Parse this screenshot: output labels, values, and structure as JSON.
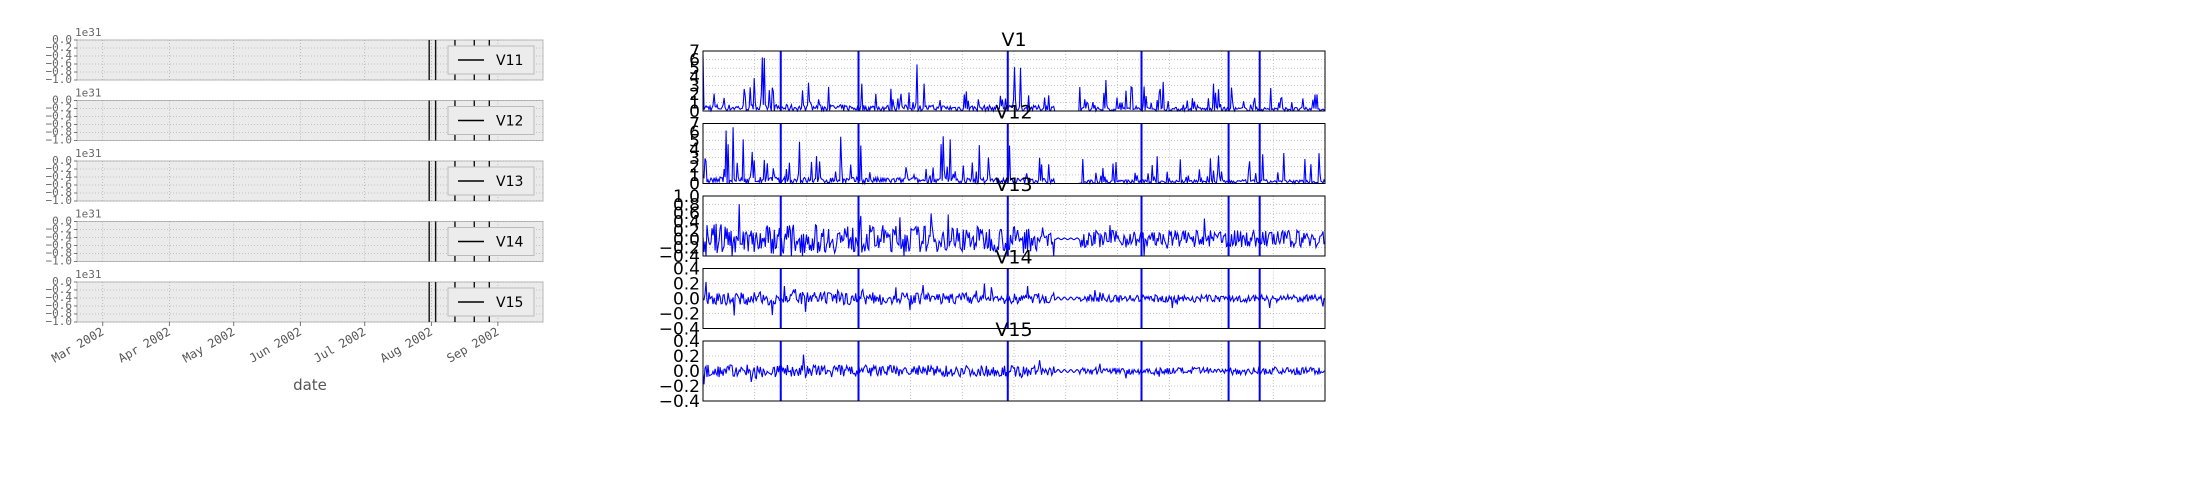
{
  "left_panel": {
    "xlabel": "date",
    "x_tick_labels": [
      "Mar 2002",
      "Apr 2002",
      "May 2002",
      "Jun 2002",
      "Jul 2002",
      "Aug 2002",
      "Sep 2002"
    ],
    "y_offset_label": "1e31",
    "y_tick_labels": [
      "0.0",
      "−0.2",
      "−0.4",
      "−0.6",
      "−0.8",
      "−1.0"
    ],
    "legend_position": "right",
    "background_color": "#ebebeb",
    "line_color": "#000000"
  },
  "chart_data": [
    {
      "type": "line",
      "panel": "left",
      "series": [
        {
          "name": "V11",
          "values": []
        }
      ],
      "ylim": [
        -1.0,
        0.0
      ],
      "y_scale_label": "1e31",
      "event_dates": [
        "2002-07-31",
        "2002-08-03",
        "2002-08-12",
        "2002-08-21",
        "2002-08-28"
      ],
      "grid": true,
      "legend": "right"
    },
    {
      "type": "line",
      "panel": "left",
      "series": [
        {
          "name": "V12",
          "values": []
        }
      ],
      "ylim": [
        -1.0,
        0.0
      ],
      "y_scale_label": "1e31",
      "event_dates": [
        "2002-07-31",
        "2002-08-03",
        "2002-08-12",
        "2002-08-21",
        "2002-08-28"
      ],
      "grid": true,
      "legend": "right"
    },
    {
      "type": "line",
      "panel": "left",
      "series": [
        {
          "name": "V13",
          "values": []
        }
      ],
      "ylim": [
        -1.0,
        0.0
      ],
      "y_scale_label": "1e31",
      "event_dates": [
        "2002-07-31",
        "2002-08-03",
        "2002-08-12",
        "2002-08-21",
        "2002-08-28"
      ],
      "grid": true,
      "legend": "right"
    },
    {
      "type": "line",
      "panel": "left",
      "series": [
        {
          "name": "V14",
          "values": []
        }
      ],
      "ylim": [
        -1.0,
        0.0
      ],
      "y_scale_label": "1e31",
      "event_dates": [
        "2002-07-31",
        "2002-08-03",
        "2002-08-12",
        "2002-08-21",
        "2002-08-28"
      ],
      "grid": true,
      "legend": "right"
    },
    {
      "type": "line",
      "panel": "left",
      "series": [
        {
          "name": "V15",
          "values": []
        }
      ],
      "ylim": [
        -1.0,
        0.0
      ],
      "y_scale_label": "1e31",
      "event_dates": [
        "2002-07-31",
        "2002-08-03",
        "2002-08-12",
        "2002-08-21",
        "2002-08-28"
      ],
      "grid": true,
      "legend": "right"
    },
    {
      "type": "line",
      "panel": "right",
      "title": "V1",
      "ylim": [
        0,
        7
      ],
      "yticks": [
        "0",
        "1",
        "2",
        "3",
        "4",
        "5",
        "6",
        "7"
      ],
      "color": "#0000ff",
      "grid": true
    },
    {
      "type": "line",
      "panel": "right",
      "title": "V12",
      "ylim": [
        0,
        7
      ],
      "yticks": [
        "0",
        "1",
        "2",
        "3",
        "4",
        "5",
        "6",
        "7"
      ],
      "color": "#0000ff",
      "grid": true
    },
    {
      "type": "line",
      "panel": "right",
      "title": "V13",
      "ylim": [
        -0.4,
        1.0
      ],
      "yticks": [
        "−0.4",
        "−0.2",
        "0.0",
        "0.2",
        "0.4",
        "0.6",
        "0.8",
        "1.0"
      ],
      "color": "#0000ff",
      "grid": true
    },
    {
      "type": "line",
      "panel": "right",
      "title": "V14",
      "ylim": [
        -0.4,
        0.4
      ],
      "yticks": [
        "−0.4",
        "−0.2",
        "0.0",
        "0.2",
        "0.4"
      ],
      "color": "#0000ff",
      "grid": true
    },
    {
      "type": "line",
      "panel": "right",
      "title": "V15",
      "ylim": [
        -0.4,
        0.4
      ],
      "yticks": [
        "−0.4",
        "−0.2",
        "0.0",
        "0.2",
        "0.4"
      ],
      "color": "#0000ff",
      "grid": true
    }
  ]
}
